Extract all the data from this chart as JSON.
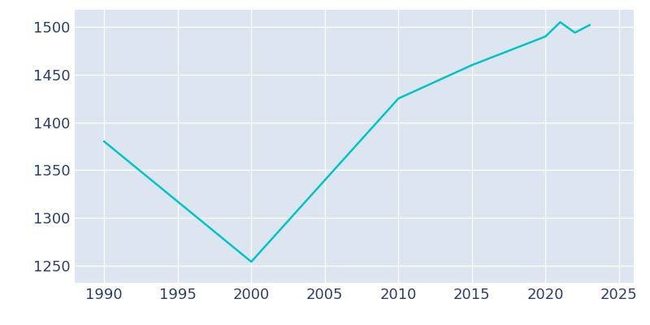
{
  "years": [
    1990,
    2000,
    2010,
    2015,
    2020,
    2021,
    2022,
    2023
  ],
  "population": [
    1380,
    1254,
    1425,
    1460,
    1490,
    1505,
    1494,
    1502
  ],
  "line_color": "#00C5C5",
  "background_color": "#dde6f0",
  "plot_bg_color": "#dde6f0",
  "outer_bg_color": "#ffffff",
  "xlim": [
    1988,
    2026
  ],
  "ylim": [
    1232,
    1518
  ],
  "xticks": [
    1990,
    1995,
    2000,
    2005,
    2010,
    2015,
    2020,
    2025
  ],
  "yticks": [
    1250,
    1300,
    1350,
    1400,
    1450,
    1500
  ],
  "linewidth": 1.8,
  "tick_label_color": "#2e3f6e",
  "tick_fontsize": 13,
  "grid_color": "#ffffff",
  "grid_linewidth": 0.9
}
